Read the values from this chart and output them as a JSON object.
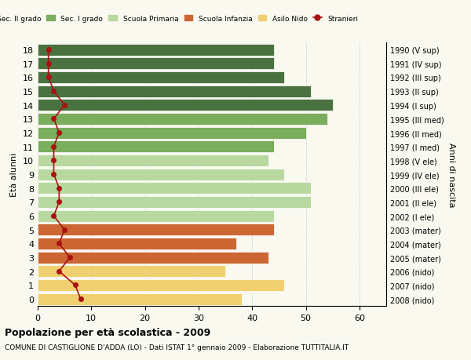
{
  "ages": [
    18,
    17,
    16,
    15,
    14,
    13,
    12,
    11,
    10,
    9,
    8,
    7,
    6,
    5,
    4,
    3,
    2,
    1,
    0
  ],
  "bar_values": [
    44,
    44,
    46,
    51,
    55,
    54,
    50,
    44,
    43,
    46,
    51,
    51,
    44,
    44,
    37,
    43,
    35,
    46,
    38
  ],
  "stranieri": [
    2,
    2,
    2,
    3,
    5,
    3,
    4,
    3,
    3,
    3,
    4,
    4,
    3,
    5,
    4,
    6,
    4,
    7,
    8
  ],
  "right_labels": [
    "1990 (V sup)",
    "1991 (IV sup)",
    "1992 (III sup)",
    "1993 (II sup)",
    "1994 (I sup)",
    "1995 (III med)",
    "1996 (II med)",
    "1997 (I med)",
    "1998 (V ele)",
    "1999 (IV ele)",
    "2000 (III ele)",
    "2001 (II ele)",
    "2002 (I ele)",
    "2003 (mater)",
    "2004 (mater)",
    "2005 (mater)",
    "2006 (nido)",
    "2007 (nido)",
    "2008 (nido)"
  ],
  "bar_colors": [
    "#4a7240",
    "#4a7240",
    "#4a7240",
    "#4a7240",
    "#4a7240",
    "#7aad5c",
    "#7aad5c",
    "#7aad5c",
    "#b8d8a0",
    "#b8d8a0",
    "#b8d8a0",
    "#b8d8a0",
    "#b8d8a0",
    "#cc6633",
    "#cc6633",
    "#cc6633",
    "#f0d070",
    "#f0d070",
    "#f0d070"
  ],
  "color_sec2": "#4a7240",
  "color_sec1": "#7aad5c",
  "color_prim": "#b8d8a0",
  "color_infanzia": "#cc6633",
  "color_nido": "#f0d070",
  "color_stranieri": "#aa1111",
  "title_main": "Popolazione per età scolastica - 2009",
  "title_sub": "COMUNE DI CASTIGLIONE D'ADDA (LO) - Dati ISTAT 1° gennaio 2009 - Elaborazione TUTTITALIA.IT",
  "ylabel": "Età alunni",
  "right_ylabel": "Anni di nascita",
  "xlim": [
    0,
    65
  ],
  "xticks": [
    0,
    10,
    20,
    30,
    40,
    50,
    60
  ],
  "bg_color": "#f9f9f0",
  "grid_color": "#cccccc"
}
